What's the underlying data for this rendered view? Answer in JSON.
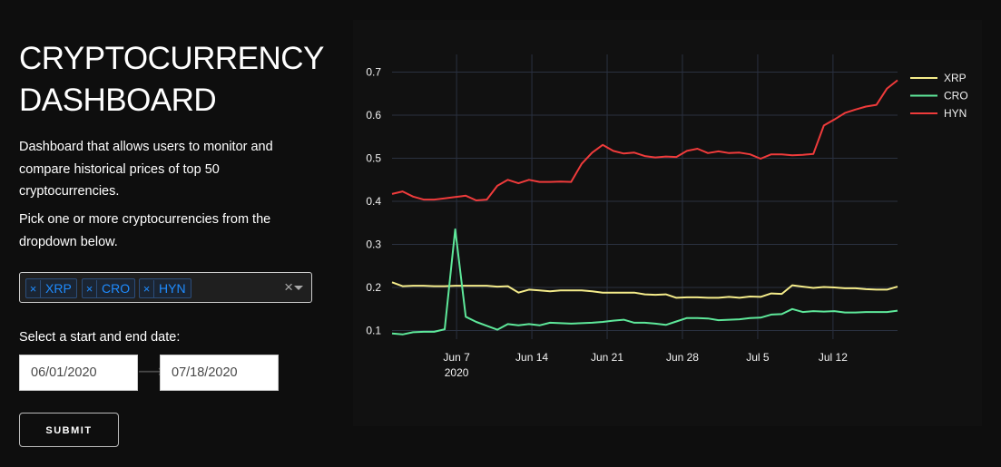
{
  "sidebar": {
    "title_line1": "CRYPTOCURRENCY",
    "title_line2": "DASHBOARD",
    "description": "Dashboard that allows users to monitor and compare historical prices of top 50 cryptocurrencies.",
    "instruction": "Pick one or more cryptocurrencies from the dropdown below.",
    "dropdown": {
      "selected": [
        "XRP",
        "CRO",
        "HYN"
      ],
      "remove_glyph": "×",
      "clear_glyph": "×"
    },
    "date_label": "Select a start and end date:",
    "start_date": "06/01/2020",
    "end_date": "07/18/2020",
    "arrow_glyph": "⟶",
    "submit_label": "SUBMIT"
  },
  "colors": {
    "background": "#0e0e0e",
    "plot_background": "#111111",
    "grid": "#2a3140",
    "chip_text": "#1f8cff",
    "XRP": "#f5ec8a",
    "CRO": "#5ee89a",
    "HYN": "#ef3b3b"
  },
  "chart_data": {
    "type": "line",
    "x_start": "2020-06-01",
    "x_end": "2020-07-18",
    "xlim": [
      "2020-06-01",
      "2020-07-18"
    ],
    "ylim": [
      0.08,
      0.72
    ],
    "y_ticks": [
      0.1,
      0.2,
      0.3,
      0.4,
      0.5,
      0.6,
      0.7
    ],
    "x_ticks": [
      {
        "date": "2020-06-07",
        "label": "Jun 7",
        "sublabel": "2020"
      },
      {
        "date": "2020-06-14",
        "label": "Jun 14"
      },
      {
        "date": "2020-06-21",
        "label": "Jun 21"
      },
      {
        "date": "2020-06-28",
        "label": "Jun 28"
      },
      {
        "date": "2020-07-05",
        "label": "Jul 5"
      },
      {
        "date": "2020-07-12",
        "label": "Jul 12"
      }
    ],
    "grid": true,
    "legend_position": "top-right",
    "series": [
      {
        "name": "XRP",
        "values": [
          0.212,
          0.203,
          0.204,
          0.204,
          0.203,
          0.203,
          0.204,
          0.204,
          0.204,
          0.204,
          0.202,
          0.203,
          0.188,
          0.195,
          0.193,
          0.191,
          0.193,
          0.193,
          0.193,
          0.191,
          0.188,
          0.188,
          0.188,
          0.188,
          0.184,
          0.183,
          0.184,
          0.176,
          0.177,
          0.177,
          0.176,
          0.176,
          0.178,
          0.176,
          0.179,
          0.178,
          0.186,
          0.185,
          0.205,
          0.202,
          0.199,
          0.201,
          0.2,
          0.198,
          0.198,
          0.196,
          0.195,
          0.195,
          0.202
        ]
      },
      {
        "name": "CRO",
        "values": [
          0.093,
          0.091,
          0.096,
          0.097,
          0.097,
          0.103,
          0.335,
          0.132,
          0.12,
          0.111,
          0.102,
          0.115,
          0.112,
          0.115,
          0.112,
          0.118,
          0.117,
          0.116,
          0.117,
          0.118,
          0.12,
          0.123,
          0.125,
          0.118,
          0.118,
          0.116,
          0.113,
          0.121,
          0.129,
          0.129,
          0.128,
          0.124,
          0.125,
          0.126,
          0.129,
          0.13,
          0.137,
          0.138,
          0.15,
          0.143,
          0.145,
          0.144,
          0.145,
          0.142,
          0.142,
          0.143,
          0.143,
          0.143,
          0.146
        ]
      },
      {
        "name": "HYN",
        "values": [
          0.417,
          0.423,
          0.411,
          0.404,
          0.404,
          0.407,
          0.41,
          0.413,
          0.402,
          0.404,
          0.436,
          0.45,
          0.442,
          0.45,
          0.445,
          0.445,
          0.446,
          0.445,
          0.487,
          0.513,
          0.531,
          0.517,
          0.511,
          0.513,
          0.505,
          0.502,
          0.504,
          0.503,
          0.517,
          0.522,
          0.512,
          0.516,
          0.512,
          0.513,
          0.509,
          0.499,
          0.509,
          0.509,
          0.507,
          0.508,
          0.51,
          0.576,
          0.59,
          0.605,
          0.613,
          0.62,
          0.624,
          0.662,
          0.681
        ]
      }
    ]
  }
}
